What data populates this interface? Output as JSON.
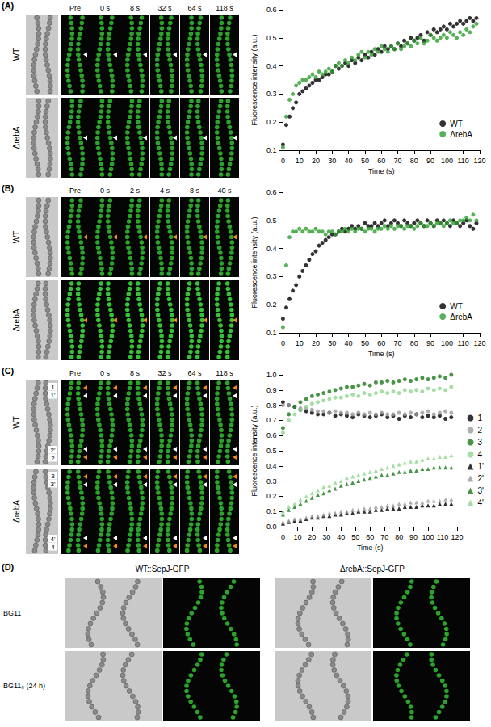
{
  "chart_data": [
    {
      "type": "scatter",
      "x_label": "Time (s)",
      "y_label": "Fluorescence intensity (a.u.)",
      "xlim": [
        0,
        120
      ],
      "xticks": [
        0,
        10,
        20,
        30,
        40,
        50,
        60,
        70,
        80,
        90,
        100,
        110,
        120
      ],
      "ylim": [
        0.1,
        0.6
      ],
      "yticks": [
        0.1,
        0.2,
        0.3,
        0.4,
        0.5,
        0.6
      ],
      "grid": false,
      "legend": "lower right",
      "x": [
        0,
        2,
        4,
        6,
        8,
        10,
        12,
        14,
        16,
        18,
        20,
        22,
        24,
        26,
        28,
        30,
        32,
        34,
        36,
        38,
        40,
        42,
        44,
        46,
        48,
        50,
        52,
        54,
        56,
        58,
        60,
        62,
        64,
        66,
        68,
        70,
        72,
        74,
        76,
        78,
        80,
        82,
        84,
        86,
        88,
        90,
        92,
        94,
        96,
        98,
        100,
        102,
        104,
        106,
        108,
        110,
        112,
        114,
        116,
        118
      ],
      "series": [
        {
          "name": "WT",
          "color": "#000000",
          "marker": "circle",
          "values": [
            0.12,
            0.19,
            0.22,
            0.25,
            0.27,
            0.3,
            0.31,
            0.32,
            0.33,
            0.34,
            0.35,
            0.35,
            0.36,
            0.37,
            0.37,
            0.38,
            0.4,
            0.39,
            0.4,
            0.41,
            0.4,
            0.42,
            0.41,
            0.43,
            0.42,
            0.44,
            0.43,
            0.45,
            0.44,
            0.46,
            0.45,
            0.47,
            0.46,
            0.47,
            0.46,
            0.48,
            0.47,
            0.49,
            0.48,
            0.5,
            0.49,
            0.5,
            0.51,
            0.49,
            0.52,
            0.51,
            0.53,
            0.52,
            0.53,
            0.54,
            0.53,
            0.55,
            0.54,
            0.55,
            0.56,
            0.55,
            0.56,
            0.57,
            0.56,
            0.57
          ]
        },
        {
          "name": "ΔrebA",
          "color": "#2e9e2e",
          "marker": "circle",
          "values": [
            0.11,
            0.22,
            0.28,
            0.3,
            0.33,
            0.34,
            0.35,
            0.35,
            0.36,
            0.37,
            0.36,
            0.38,
            0.37,
            0.38,
            0.39,
            0.38,
            0.4,
            0.41,
            0.4,
            0.42,
            0.41,
            0.43,
            0.42,
            0.44,
            0.45,
            0.43,
            0.45,
            0.44,
            0.46,
            0.45,
            0.47,
            0.46,
            0.45,
            0.47,
            0.46,
            0.48,
            0.46,
            0.47,
            0.48,
            0.47,
            0.49,
            0.48,
            0.5,
            0.48,
            0.49,
            0.51,
            0.5,
            0.49,
            0.5,
            0.51,
            0.5,
            0.52,
            0.51,
            0.5,
            0.52,
            0.51,
            0.53,
            0.52,
            0.54,
            0.55
          ]
        }
      ]
    },
    {
      "type": "scatter",
      "x_label": "Time (s)",
      "y_label": "Fluorescence intensity (a.u.)",
      "xlim": [
        0,
        120
      ],
      "xticks": [
        0,
        10,
        20,
        30,
        40,
        50,
        60,
        70,
        80,
        90,
        100,
        110,
        120
      ],
      "ylim": [
        0.1,
        0.6
      ],
      "yticks": [
        0.1,
        0.2,
        0.3,
        0.4,
        0.5,
        0.6
      ],
      "grid": false,
      "legend": "lower right",
      "x": [
        0,
        2,
        4,
        6,
        8,
        10,
        12,
        14,
        16,
        18,
        20,
        22,
        24,
        26,
        28,
        30,
        32,
        34,
        36,
        38,
        40,
        42,
        44,
        46,
        48,
        50,
        52,
        54,
        56,
        58,
        60,
        62,
        64,
        66,
        68,
        70,
        72,
        74,
        76,
        78,
        80,
        82,
        84,
        86,
        88,
        90,
        92,
        94,
        96,
        98,
        100,
        102,
        104,
        106,
        108,
        110,
        112,
        114,
        116,
        118
      ],
      "series": [
        {
          "name": "WT",
          "color": "#000000",
          "marker": "circle",
          "values": [
            0.15,
            0.19,
            0.22,
            0.25,
            0.27,
            0.3,
            0.32,
            0.34,
            0.36,
            0.38,
            0.39,
            0.41,
            0.42,
            0.43,
            0.44,
            0.45,
            0.45,
            0.46,
            0.47,
            0.46,
            0.47,
            0.48,
            0.47,
            0.48,
            0.47,
            0.49,
            0.48,
            0.48,
            0.49,
            0.48,
            0.49,
            0.5,
            0.48,
            0.49,
            0.5,
            0.49,
            0.48,
            0.5,
            0.49,
            0.48,
            0.49,
            0.5,
            0.49,
            0.48,
            0.5,
            0.49,
            0.48,
            0.5,
            0.49,
            0.5,
            0.49,
            0.48,
            0.5,
            0.49,
            0.48,
            0.49,
            0.5,
            0.48,
            0.47,
            0.49
          ]
        },
        {
          "name": "ΔrebA",
          "color": "#2e9e2e",
          "marker": "circle",
          "values": [
            0.12,
            0.34,
            0.44,
            0.46,
            0.46,
            0.47,
            0.46,
            0.47,
            0.46,
            0.46,
            0.47,
            0.46,
            0.46,
            0.45,
            0.46,
            0.46,
            0.45,
            0.46,
            0.46,
            0.47,
            0.46,
            0.47,
            0.46,
            0.47,
            0.47,
            0.46,
            0.47,
            0.47,
            0.46,
            0.47,
            0.47,
            0.48,
            0.47,
            0.48,
            0.47,
            0.48,
            0.48,
            0.47,
            0.48,
            0.48,
            0.47,
            0.48,
            0.49,
            0.48,
            0.48,
            0.49,
            0.48,
            0.49,
            0.49,
            0.48,
            0.49,
            0.5,
            0.49,
            0.49,
            0.5,
            0.5,
            0.51,
            0.5,
            0.52,
            0.5
          ]
        }
      ]
    },
    {
      "type": "scatter",
      "x_label": "Time (s)",
      "y_label": "Fluorescence intensity (a.u.)",
      "xlim": [
        0,
        120
      ],
      "xticks": [
        0,
        10,
        20,
        30,
        40,
        50,
        60,
        70,
        80,
        90,
        100,
        110,
        120
      ],
      "ylim": [
        0,
        1
      ],
      "yticks": [
        {
          "value": 0,
          "label": "0.0"
        },
        0.1,
        0.2,
        0.3,
        0.4,
        0.5,
        0.6,
        0.7,
        0.8,
        0.9,
        {
          "value": 1,
          "label": "1.0"
        }
      ],
      "grid": false,
      "legend": "right",
      "x": [
        0,
        4,
        8,
        12,
        16,
        20,
        24,
        28,
        32,
        36,
        40,
        44,
        48,
        52,
        56,
        60,
        64,
        68,
        72,
        76,
        80,
        84,
        88,
        92,
        96,
        100,
        104,
        108,
        112,
        116
      ],
      "series": [
        {
          "name": "1",
          "color": "#000000",
          "marker": "circle",
          "values": [
            0.82,
            0.8,
            0.79,
            0.77,
            0.76,
            0.75,
            0.74,
            0.74,
            0.75,
            0.73,
            0.74,
            0.73,
            0.72,
            0.74,
            0.73,
            0.72,
            0.73,
            0.74,
            0.72,
            0.73,
            0.71,
            0.73,
            0.72,
            0.74,
            0.72,
            0.73,
            0.72,
            0.73,
            0.71,
            0.72
          ]
        },
        {
          "name": "2",
          "color": "#9a9a9a",
          "marker": "circle",
          "values": [
            0.8,
            0.8,
            0.79,
            0.78,
            0.78,
            0.77,
            0.76,
            0.76,
            0.75,
            0.76,
            0.75,
            0.75,
            0.74,
            0.75,
            0.74,
            0.75,
            0.74,
            0.75,
            0.74,
            0.74,
            0.75,
            0.74,
            0.75,
            0.74,
            0.75,
            0.76,
            0.74,
            0.75,
            0.76,
            0.75
          ]
        },
        {
          "name": "3",
          "color": "#1a7a1a",
          "marker": "circle",
          "values": [
            0.65,
            0.74,
            0.79,
            0.82,
            0.84,
            0.86,
            0.87,
            0.88,
            0.89,
            0.9,
            0.91,
            0.92,
            0.92,
            0.93,
            0.94,
            0.93,
            0.95,
            0.95,
            0.96,
            0.95,
            0.96,
            0.97,
            0.96,
            0.97,
            0.98,
            0.97,
            0.98,
            0.99,
            0.98,
            1.0
          ]
        },
        {
          "name": "4",
          "color": "#8fd68f",
          "marker": "circle",
          "values": [
            0.62,
            0.7,
            0.74,
            0.77,
            0.79,
            0.81,
            0.82,
            0.83,
            0.84,
            0.85,
            0.85,
            0.86,
            0.87,
            0.86,
            0.88,
            0.87,
            0.88,
            0.89,
            0.88,
            0.89,
            0.88,
            0.9,
            0.89,
            0.9,
            0.89,
            0.91,
            0.9,
            0.91,
            0.9,
            0.92
          ]
        },
        {
          "name": "1'",
          "color": "#000000",
          "marker": "triangle",
          "values": [
            0.02,
            0.03,
            0.04,
            0.04,
            0.05,
            0.06,
            0.06,
            0.07,
            0.07,
            0.08,
            0.08,
            0.09,
            0.09,
            0.1,
            0.1,
            0.1,
            0.11,
            0.11,
            0.12,
            0.12,
            0.12,
            0.13,
            0.13,
            0.13,
            0.14,
            0.14,
            0.14,
            0.15,
            0.15,
            0.15
          ]
        },
        {
          "name": "2'",
          "color": "#9a9a9a",
          "marker": "triangle",
          "values": [
            0.03,
            0.04,
            0.05,
            0.05,
            0.06,
            0.07,
            0.07,
            0.08,
            0.09,
            0.09,
            0.1,
            0.1,
            0.11,
            0.11,
            0.12,
            0.12,
            0.13,
            0.13,
            0.14,
            0.14,
            0.15,
            0.15,
            0.16,
            0.16,
            0.16,
            0.17,
            0.17,
            0.17,
            0.18,
            0.18
          ]
        },
        {
          "name": "3'",
          "color": "#1a7a1a",
          "marker": "triangle",
          "values": [
            0.08,
            0.11,
            0.13,
            0.15,
            0.17,
            0.19,
            0.21,
            0.22,
            0.24,
            0.25,
            0.27,
            0.28,
            0.29,
            0.3,
            0.31,
            0.32,
            0.33,
            0.34,
            0.34,
            0.35,
            0.36,
            0.36,
            0.37,
            0.37,
            0.38,
            0.38,
            0.39,
            0.39,
            0.39,
            0.39
          ]
        },
        {
          "name": "4'",
          "color": "#8fd68f",
          "marker": "triangle",
          "values": [
            0.1,
            0.13,
            0.15,
            0.18,
            0.2,
            0.22,
            0.24,
            0.26,
            0.27,
            0.29,
            0.3,
            0.32,
            0.33,
            0.34,
            0.35,
            0.36,
            0.37,
            0.38,
            0.39,
            0.4,
            0.41,
            0.42,
            0.43,
            0.43,
            0.44,
            0.45,
            0.45,
            0.46,
            0.46,
            0.47
          ]
        }
      ]
    }
  ],
  "image_panels": [
    {
      "letter": "(A)",
      "columns": [
        "Pre",
        "0 s",
        "8 s",
        "32 s",
        "64 s",
        "118 s"
      ],
      "rows": [
        "WT",
        "ΔrebA"
      ]
    },
    {
      "letter": "(B)",
      "columns": [
        "Pre",
        "0 s",
        "2 s",
        "4 s",
        "8 s",
        "40 s"
      ],
      "rows": [
        "WT",
        "ΔrebA"
      ]
    },
    {
      "letter": "(C)",
      "columns": [
        "Pre",
        "0 s",
        "8 s",
        "32 s",
        "64 s",
        "118 s"
      ],
      "rows": [
        "WT",
        "ΔrebA"
      ],
      "cell_labels": [
        [
          "1",
          "1'",
          "2'",
          "2"
        ],
        [
          "3",
          "3'",
          "4'",
          "4"
        ]
      ]
    },
    {
      "letter": "(D)",
      "columns": [
        "WT::SepJ-GFP",
        "ΔrebA::SepJ-GFP"
      ],
      "rows": [
        "BG11",
        "BG11₀ (24 h)"
      ]
    }
  ]
}
